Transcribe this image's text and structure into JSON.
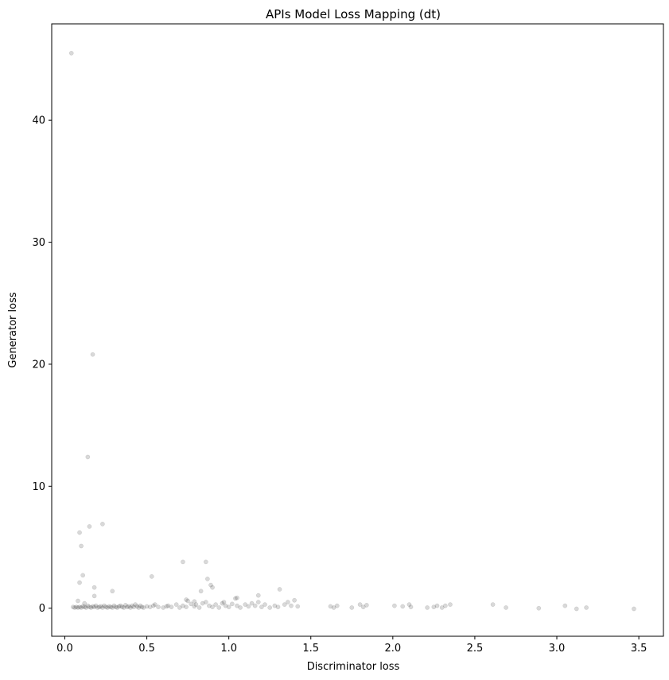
{
  "chart_data": {
    "type": "scatter",
    "title": "APIs Model Loss Mapping (dt)",
    "xlabel": "Discriminator loss",
    "ylabel": "Generator loss",
    "xlim": [
      -0.08,
      3.65
    ],
    "ylim": [
      -2.3,
      47.9
    ],
    "xticks": [
      0.0,
      0.5,
      1.0,
      1.5,
      2.0,
      2.5,
      3.0,
      3.5
    ],
    "xtick_labels": [
      "0.0",
      "0.5",
      "1.0",
      "1.5",
      "2.0",
      "2.5",
      "3.0",
      "3.5"
    ],
    "yticks": [
      0,
      10,
      20,
      30,
      40
    ],
    "ytick_labels": [
      "0",
      "10",
      "20",
      "30",
      "40"
    ],
    "grid": false,
    "marker_color": "#000000",
    "marker_alpha": 0.15,
    "points": [
      [
        0.04,
        45.5
      ],
      [
        0.17,
        20.8
      ],
      [
        0.14,
        12.4
      ],
      [
        0.23,
        6.9
      ],
      [
        0.15,
        6.7
      ],
      [
        0.09,
        6.2
      ],
      [
        0.1,
        5.1
      ],
      [
        0.11,
        2.7
      ],
      [
        0.09,
        2.1
      ],
      [
        0.18,
        1.7
      ],
      [
        0.29,
        1.4
      ],
      [
        0.18,
        1.0
      ],
      [
        0.08,
        0.6
      ],
      [
        0.12,
        0.4
      ],
      [
        0.05,
        0.1
      ],
      [
        0.06,
        0.05
      ],
      [
        0.07,
        0.1
      ],
      [
        0.08,
        0.05
      ],
      [
        0.09,
        0.1
      ],
      [
        0.1,
        0.05
      ],
      [
        0.11,
        0.15
      ],
      [
        0.12,
        0.1
      ],
      [
        0.13,
        0.05
      ],
      [
        0.14,
        0.2
      ],
      [
        0.15,
        0.1
      ],
      [
        0.16,
        0.05
      ],
      [
        0.17,
        0.15
      ],
      [
        0.18,
        0.1
      ],
      [
        0.19,
        0.2
      ],
      [
        0.2,
        0.05
      ],
      [
        0.21,
        0.1
      ],
      [
        0.22,
        0.15
      ],
      [
        0.23,
        0.05
      ],
      [
        0.24,
        0.2
      ],
      [
        0.25,
        0.1
      ],
      [
        0.26,
        0.05
      ],
      [
        0.27,
        0.15
      ],
      [
        0.28,
        0.1
      ],
      [
        0.29,
        0.05
      ],
      [
        0.3,
        0.2
      ],
      [
        0.31,
        0.1
      ],
      [
        0.32,
        0.05
      ],
      [
        0.33,
        0.15
      ],
      [
        0.34,
        0.2
      ],
      [
        0.35,
        0.1
      ],
      [
        0.36,
        0.05
      ],
      [
        0.37,
        0.25
      ],
      [
        0.38,
        0.1
      ],
      [
        0.39,
        0.15
      ],
      [
        0.4,
        0.05
      ],
      [
        0.41,
        0.2
      ],
      [
        0.42,
        0.1
      ],
      [
        0.43,
        0.3
      ],
      [
        0.44,
        0.15
      ],
      [
        0.45,
        0.05
      ],
      [
        0.46,
        0.2
      ],
      [
        0.47,
        0.1
      ],
      [
        0.48,
        0.05
      ],
      [
        0.5,
        0.15
      ],
      [
        0.52,
        0.1
      ],
      [
        0.54,
        0.2
      ],
      [
        0.55,
        0.3
      ],
      [
        0.57,
        0.1
      ],
      [
        0.6,
        0.05
      ],
      [
        0.62,
        0.15
      ],
      [
        0.63,
        0.2
      ],
      [
        0.65,
        0.1
      ],
      [
        0.68,
        0.3
      ],
      [
        0.7,
        0.05
      ],
      [
        0.72,
        0.2
      ],
      [
        0.74,
        0.1
      ],
      [
        0.75,
        0.6
      ],
      [
        0.77,
        0.35
      ],
      [
        0.79,
        0.15
      ],
      [
        0.8,
        0.3
      ],
      [
        0.82,
        0.05
      ],
      [
        0.84,
        0.4
      ],
      [
        0.86,
        0.5
      ],
      [
        0.88,
        0.2
      ],
      [
        0.9,
        0.1
      ],
      [
        0.92,
        0.3
      ],
      [
        0.94,
        0.05
      ],
      [
        0.96,
        0.4
      ],
      [
        0.98,
        0.2
      ],
      [
        1.0,
        0.1
      ],
      [
        1.02,
        0.35
      ],
      [
        1.04,
        0.8
      ],
      [
        1.05,
        0.2
      ],
      [
        1.07,
        0.05
      ],
      [
        1.1,
        0.3
      ],
      [
        1.12,
        0.15
      ],
      [
        1.14,
        0.4
      ],
      [
        1.16,
        0.2
      ],
      [
        1.18,
        0.5
      ],
      [
        1.2,
        0.1
      ],
      [
        1.22,
        0.3
      ],
      [
        1.25,
        0.05
      ],
      [
        1.28,
        0.2
      ],
      [
        1.3,
        0.1
      ],
      [
        1.34,
        0.3
      ],
      [
        1.36,
        0.5
      ],
      [
        1.38,
        0.2
      ],
      [
        1.4,
        0.65
      ],
      [
        1.42,
        0.15
      ],
      [
        0.53,
        2.6
      ],
      [
        0.72,
        3.8
      ],
      [
        0.86,
        3.8
      ],
      [
        0.87,
        2.4
      ],
      [
        0.89,
        1.9
      ],
      [
        0.9,
        1.7
      ],
      [
        0.83,
        1.4
      ],
      [
        0.97,
        0.5
      ],
      [
        1.18,
        1.05
      ],
      [
        1.31,
        1.55
      ],
      [
        1.05,
        0.85
      ],
      [
        0.74,
        0.7
      ],
      [
        0.79,
        0.55
      ],
      [
        1.62,
        0.15
      ],
      [
        1.64,
        0.05
      ],
      [
        1.66,
        0.2
      ],
      [
        1.75,
        0.05
      ],
      [
        1.8,
        0.3
      ],
      [
        1.82,
        0.1
      ],
      [
        1.84,
        0.25
      ],
      [
        2.01,
        0.2
      ],
      [
        2.06,
        0.15
      ],
      [
        2.1,
        0.3
      ],
      [
        2.11,
        0.1
      ],
      [
        2.21,
        0.05
      ],
      [
        2.25,
        0.1
      ],
      [
        2.27,
        0.2
      ],
      [
        2.3,
        0.05
      ],
      [
        2.32,
        0.2
      ],
      [
        2.35,
        0.3
      ],
      [
        2.61,
        0.3
      ],
      [
        2.69,
        0.05
      ],
      [
        2.89,
        0.0
      ],
      [
        3.05,
        0.2
      ],
      [
        3.12,
        -0.05
      ],
      [
        3.18,
        0.05
      ],
      [
        3.47,
        -0.05
      ]
    ]
  }
}
